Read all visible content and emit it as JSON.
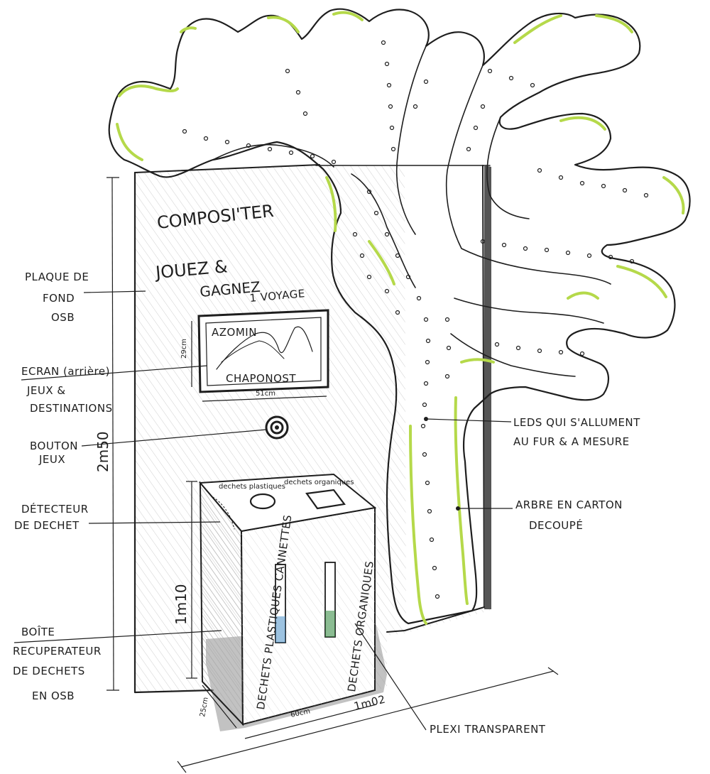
{
  "panel": {
    "title": "COMPOSI'TER",
    "slogan_line1": "JOUEZ &",
    "slogan_line2": "GAGNEZ",
    "slogan_line3": "1 VOYAGE"
  },
  "screen": {
    "text_top": "AZOMIN",
    "text_bottom": "CHAPONOST",
    "height_dim": "29cm",
    "width_dim": "51cm"
  },
  "bin": {
    "lid_label_left": "dechets plastiques",
    "lid_label_right": "dechets organiques",
    "slot_left_text": "DECHETS PLASTIQUES CANNETTES",
    "slot_right_text": "DECHETS ORGANIQUES",
    "height_dim": "1m10",
    "depth_dim": "25cm",
    "width_dim": "60cm"
  },
  "dimensions": {
    "panel_height": "2m50",
    "overall_depth": "1m02"
  },
  "labels": {
    "plaque_line1": "PLAQUE DE",
    "plaque_line2": "FOND",
    "plaque_line3": "OSB",
    "ecran_line1": "ECRAN (arrière)",
    "ecran_line2": "JEUX &",
    "ecran_line3": "DESTINATIONS",
    "bouton_line1": "BOUTON",
    "bouton_line2": "JEUX",
    "detecteur_line1": "DÉTECTEUR",
    "detecteur_line2": "DE DECHET",
    "boite_line1": "BOÎTE",
    "boite_line2": "RECUPERATEUR",
    "boite_line3": "DE DECHETS",
    "boite_line4": "EN OSB",
    "leds_line1": "LEDS QUI S'ALLUMENT",
    "leds_line2": "AU FUR & A MESURE",
    "arbre_line1": "ARBRE EN CARTON",
    "arbre_line2": "DECOUPÉ",
    "plexi": "PLEXI TRANSPARENT"
  },
  "colors": {
    "ink": "#1e1e1e",
    "accent_green": "#b5d94a",
    "hatch": "#c9c9c9",
    "shadow": "#8c8c8c"
  }
}
